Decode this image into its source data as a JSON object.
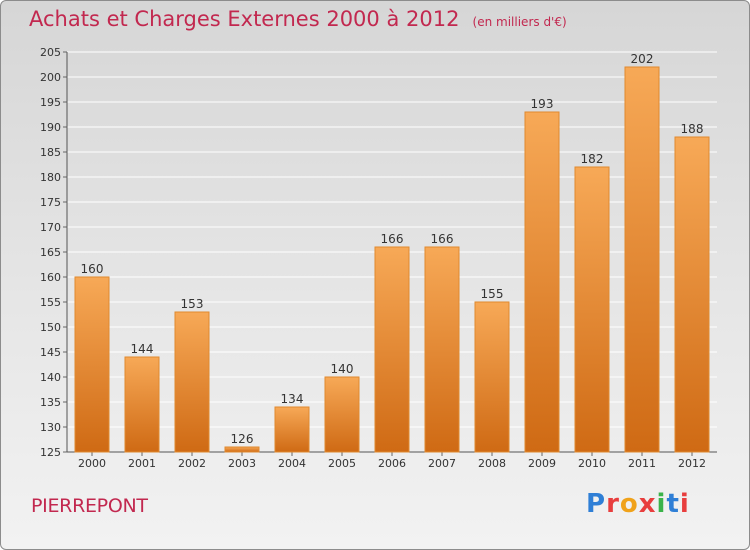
{
  "header": {
    "title": "Achats et Charges Externes 2000 à 2012",
    "subtitle": "(en milliers d'€)"
  },
  "footer": {
    "commune": "PIERREPONT",
    "logo": "Proxiti",
    "logo_colors": [
      "#2f7fd6",
      "#e83e3e",
      "#f0a21a",
      "#e83e3e",
      "#3bb34a",
      "#2f7fd6",
      "#e83e3e"
    ]
  },
  "chart_data": {
    "type": "bar",
    "categories": [
      "2000",
      "2001",
      "2002",
      "2003",
      "2004",
      "2005",
      "2006",
      "2007",
      "2008",
      "2009",
      "2010",
      "2011",
      "2012"
    ],
    "values": [
      160,
      144,
      153,
      126,
      134,
      140,
      166,
      166,
      155,
      193,
      182,
      202,
      188
    ],
    "title": "Achats et Charges Externes 2000 à 2012",
    "subtitle": "(en milliers d'€)",
    "ylim": [
      125,
      205
    ],
    "yticks": [
      125,
      130,
      135,
      140,
      145,
      150,
      155,
      160,
      165,
      170,
      175,
      180,
      185,
      190,
      195,
      200,
      205
    ],
    "grid": true,
    "bar_color_top": "#f7a957",
    "bar_color_bottom": "#cf6a14",
    "bar_outline": "#e0892e"
  }
}
